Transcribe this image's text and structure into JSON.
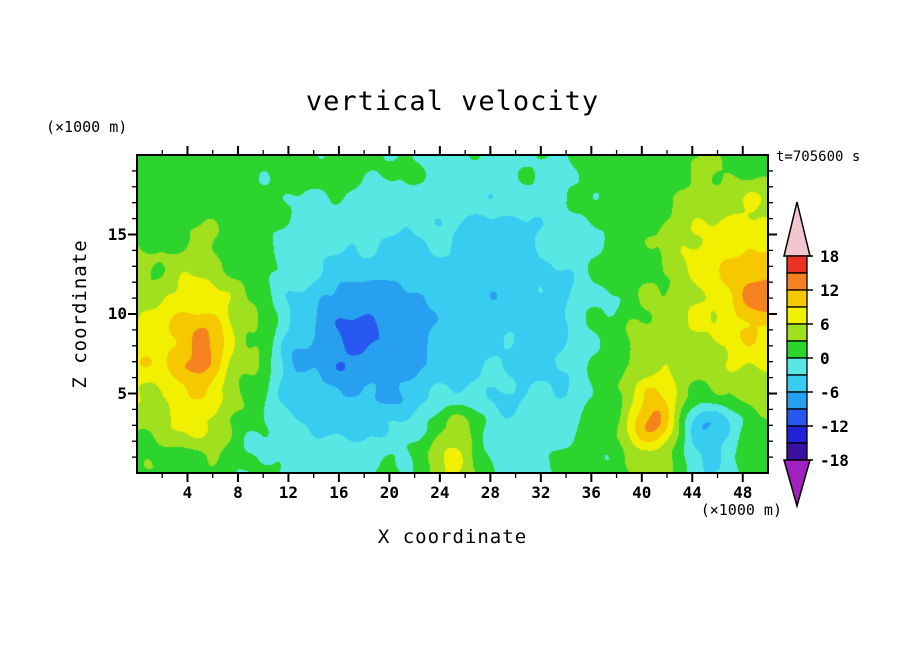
{
  "chart_data": {
    "type": "heatmap",
    "title": "vertical velocity",
    "time_label": "t=705600 s",
    "xlabel": "X coordinate",
    "ylabel": "Z coordinate",
    "x_unit_label": "(×1000 m)",
    "z_unit_label": "(×1000 m)",
    "xlim": [
      0,
      50
    ],
    "zlim": [
      0,
      20
    ],
    "x_ticks_major": [
      4,
      8,
      12,
      16,
      20,
      24,
      28,
      32,
      36,
      40,
      44,
      48
    ],
    "x_tick_minor_step": 2,
    "z_ticks_major": [
      5,
      10,
      15
    ],
    "z_tick_minor_step": 1,
    "contour_interval": 3,
    "levels": [
      -18,
      -15,
      -12,
      -9,
      -6,
      -3,
      0,
      3,
      6,
      9,
      12,
      15,
      18
    ],
    "colorbar": {
      "boundary_labels": [
        18,
        12,
        6,
        0,
        -6,
        -12,
        -18
      ],
      "under_color": "#a020c0",
      "over_color": "#f2c6ce",
      "segment_colors_low_to_high": [
        "#3a10a0",
        "#2222d8",
        "#2858f0",
        "#28a0f0",
        "#38ccf0",
        "#57e8e4",
        "#2dd42d",
        "#a0e01e",
        "#f0f000",
        "#f6c800",
        "#f5821e",
        "#e93423"
      ]
    },
    "grid": {
      "x": [
        1,
        5,
        9,
        13,
        17,
        21,
        25,
        29,
        33,
        37,
        41,
        45,
        49
      ],
      "z": [
        1,
        3,
        5,
        7,
        9,
        11,
        13,
        15,
        17,
        19
      ],
      "values": [
        [
          2,
          3,
          0,
          -1,
          -1,
          0,
          6,
          -1,
          0,
          1,
          5,
          -3,
          1
        ],
        [
          4,
          7,
          1,
          -3,
          -4,
          -3,
          4,
          -2,
          -2,
          1,
          13,
          -7,
          2
        ],
        [
          6,
          9,
          2,
          -5,
          -6,
          -6,
          -2,
          -3,
          -3,
          1,
          9,
          2,
          4
        ],
        [
          8,
          13,
          3,
          -6,
          -9,
          -7,
          -5,
          -3,
          -4,
          1,
          5,
          5,
          7
        ],
        [
          7,
          12,
          4,
          -5,
          -10,
          -8,
          -4,
          -4,
          -4,
          1,
          4,
          6,
          9
        ],
        [
          5,
          8,
          3,
          -4,
          -8,
          -7,
          -4,
          -5,
          -4,
          0,
          3,
          6,
          13
        ],
        [
          3,
          5,
          2,
          -2,
          -4,
          -5,
          -3,
          -5,
          -3,
          0,
          2,
          8,
          11
        ],
        [
          2,
          3,
          1,
          -1,
          -2,
          -3,
          -3,
          -6,
          -2,
          0,
          3,
          7,
          7
        ],
        [
          1,
          2,
          1,
          0,
          -1,
          -1,
          -2,
          -2,
          -1,
          1,
          2,
          4,
          6
        ],
        [
          1,
          2,
          1,
          1,
          1,
          0,
          -1,
          -1,
          0,
          1,
          2,
          3,
          2
        ]
      ]
    }
  }
}
